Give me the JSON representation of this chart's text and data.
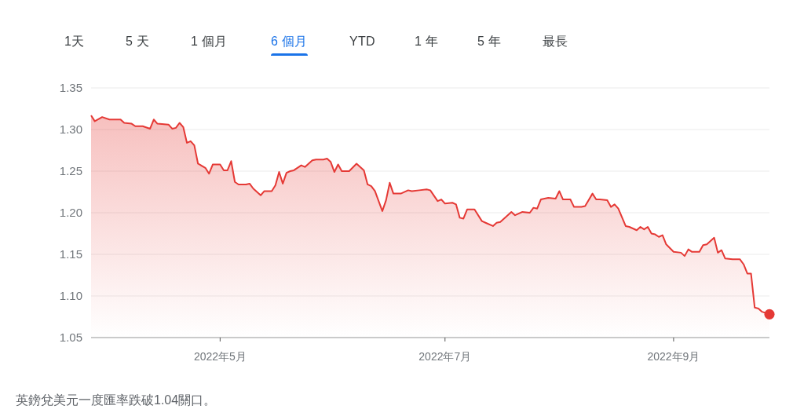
{
  "chart_data": {
    "type": "area",
    "x": [
      "2022-03-27",
      "2022-03-28",
      "2022-03-30",
      "2022-04-01",
      "2022-04-04",
      "2022-04-05",
      "2022-04-07",
      "2022-04-08",
      "2022-04-10",
      "2022-04-12",
      "2022-04-13",
      "2022-04-14",
      "2022-04-17",
      "2022-04-18",
      "2022-04-19",
      "2022-04-20",
      "2022-04-21",
      "2022-04-22",
      "2022-04-23",
      "2022-04-24",
      "2022-04-25",
      "2022-04-27",
      "2022-04-28",
      "2022-04-29",
      "2022-05-01",
      "2022-05-02",
      "2022-05-03",
      "2022-05-04",
      "2022-05-05",
      "2022-05-06",
      "2022-05-08",
      "2022-05-09",
      "2022-05-10",
      "2022-05-12",
      "2022-05-13",
      "2022-05-15",
      "2022-05-16",
      "2022-05-17",
      "2022-05-18",
      "2022-05-19",
      "2022-05-20",
      "2022-05-21",
      "2022-05-23",
      "2022-05-24",
      "2022-05-25",
      "2022-05-26",
      "2022-05-27",
      "2022-05-29",
      "2022-05-30",
      "2022-05-31",
      "2022-06-01",
      "2022-06-02",
      "2022-06-03",
      "2022-06-05",
      "2022-06-07",
      "2022-06-09",
      "2022-06-10",
      "2022-06-11",
      "2022-06-12",
      "2022-06-14",
      "2022-06-15",
      "2022-06-16",
      "2022-06-17",
      "2022-06-19",
      "2022-06-21",
      "2022-06-22",
      "2022-06-24",
      "2022-06-26",
      "2022-06-27",
      "2022-06-29",
      "2022-06-30",
      "2022-07-01",
      "2022-07-03",
      "2022-07-04",
      "2022-07-05",
      "2022-07-06",
      "2022-07-07",
      "2022-07-09",
      "2022-07-11",
      "2022-07-12",
      "2022-07-14",
      "2022-07-15",
      "2022-07-16",
      "2022-07-19",
      "2022-07-20",
      "2022-07-22",
      "2022-07-24",
      "2022-07-25",
      "2022-07-26",
      "2022-07-27",
      "2022-07-29",
      "2022-07-31",
      "2022-08-01",
      "2022-08-02",
      "2022-08-04",
      "2022-08-05",
      "2022-08-07",
      "2022-08-08",
      "2022-08-10",
      "2022-08-11",
      "2022-08-12",
      "2022-08-14",
      "2022-08-15",
      "2022-08-16",
      "2022-08-17",
      "2022-08-19",
      "2022-08-20",
      "2022-08-22",
      "2022-08-23",
      "2022-08-24",
      "2022-08-25",
      "2022-08-26",
      "2022-08-27",
      "2022-08-28",
      "2022-08-29",
      "2022-08-30",
      "2022-09-01",
      "2022-09-03",
      "2022-09-04",
      "2022-09-05",
      "2022-09-06",
      "2022-09-08",
      "2022-09-09",
      "2022-09-10",
      "2022-09-12",
      "2022-09-13",
      "2022-09-14",
      "2022-09-15",
      "2022-09-17",
      "2022-09-19",
      "2022-09-20",
      "2022-09-21",
      "2022-09-22",
      "2022-09-23",
      "2022-09-24",
      "2022-09-25",
      "2022-09-27"
    ],
    "series": [
      {
        "color": "#e53935",
        "values": [
          1.317,
          1.31,
          1.315,
          1.312,
          1.312,
          1.308,
          1.307,
          1.304,
          1.304,
          1.301,
          1.312,
          1.307,
          1.306,
          1.301,
          1.302,
          1.308,
          1.303,
          1.284,
          1.286,
          1.281,
          1.259,
          1.254,
          1.247,
          1.258,
          1.258,
          1.251,
          1.251,
          1.262,
          1.237,
          1.234,
          1.234,
          1.235,
          1.229,
          1.221,
          1.226,
          1.226,
          1.233,
          1.249,
          1.235,
          1.248,
          1.25,
          1.251,
          1.257,
          1.255,
          1.259,
          1.263,
          1.264,
          1.264,
          1.265,
          1.261,
          1.249,
          1.258,
          1.25,
          1.25,
          1.259,
          1.251,
          1.234,
          1.232,
          1.226,
          1.202,
          1.215,
          1.236,
          1.223,
          1.223,
          1.227,
          1.226,
          1.227,
          1.228,
          1.227,
          1.214,
          1.216,
          1.211,
          1.212,
          1.21,
          1.194,
          1.193,
          1.204,
          1.204,
          1.19,
          1.188,
          1.184,
          1.188,
          1.189,
          1.201,
          1.197,
          1.201,
          1.2,
          1.206,
          1.205,
          1.216,
          1.218,
          1.217,
          1.226,
          1.216,
          1.216,
          1.207,
          1.207,
          1.208,
          1.223,
          1.216,
          1.216,
          1.215,
          1.207,
          1.21,
          1.205,
          1.184,
          1.183,
          1.179,
          1.183,
          1.18,
          1.183,
          1.175,
          1.174,
          1.171,
          1.173,
          1.162,
          1.153,
          1.152,
          1.148,
          1.156,
          1.153,
          1.153,
          1.161,
          1.162,
          1.17,
          1.152,
          1.155,
          1.145,
          1.144,
          1.144,
          1.138,
          1.127,
          1.127,
          1.086,
          1.085,
          1.081,
          1.078
        ]
      },
      {
        "type": "scatter",
        "color": "#e53935",
        "marker": "circle",
        "x": [
          "2022-09-27"
        ],
        "values": [
          1.078
        ]
      }
    ],
    "xlim": [
      "2022-03-27",
      "2022-09-27"
    ],
    "xticks": [
      {
        "value": "2022-05-01",
        "label": "2022年5月"
      },
      {
        "value": "2022-07-01",
        "label": "2022年7月"
      },
      {
        "value": "2022-09-01",
        "label": "2022年9月"
      }
    ],
    "ylim": [
      1.05,
      1.35
    ],
    "yticks": [
      1.05,
      {
        "value": 1.1,
        "label": "1.10"
      },
      1.15,
      {
        "value": 1.2,
        "label": "1.20"
      },
      1.25,
      {
        "value": 1.3,
        "label": "1.30"
      },
      1.35
    ],
    "grid": "y",
    "annotations": [
      "1天",
      "5 天",
      "1 個月",
      "6 個月",
      "YTD",
      "1 年",
      "5 年",
      "最長",
      "英鎊兌美元一度匯率跌破1.04關口。"
    ]
  }
}
